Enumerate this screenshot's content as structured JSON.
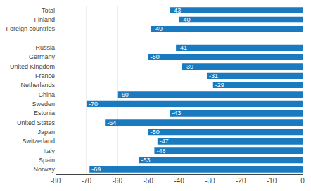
{
  "chart_data": {
    "type": "bar",
    "orientation": "horizontal",
    "categories": [
      "Total",
      "Finland",
      "Foreign countries",
      null,
      "Russia",
      "Germany",
      "United Kingdom",
      "France",
      "Netherlands",
      "China",
      "Sweden",
      "Estonia",
      "United States",
      "Japan",
      "Switzerland",
      "Italy",
      "Spain",
      "Norway"
    ],
    "values": [
      -43,
      -40,
      -49,
      null,
      -41,
      -50,
      -39,
      -31,
      -29,
      -60,
      -70,
      -43,
      -64,
      -50,
      -47,
      -48,
      -53,
      -69
    ],
    "color": "#1a7abf",
    "xlim": [
      -80,
      0
    ],
    "xticks": [
      -80,
      -70,
      -60,
      -50,
      -40,
      -30,
      -20,
      -10,
      0
    ],
    "grid": true,
    "data_labels": true
  }
}
